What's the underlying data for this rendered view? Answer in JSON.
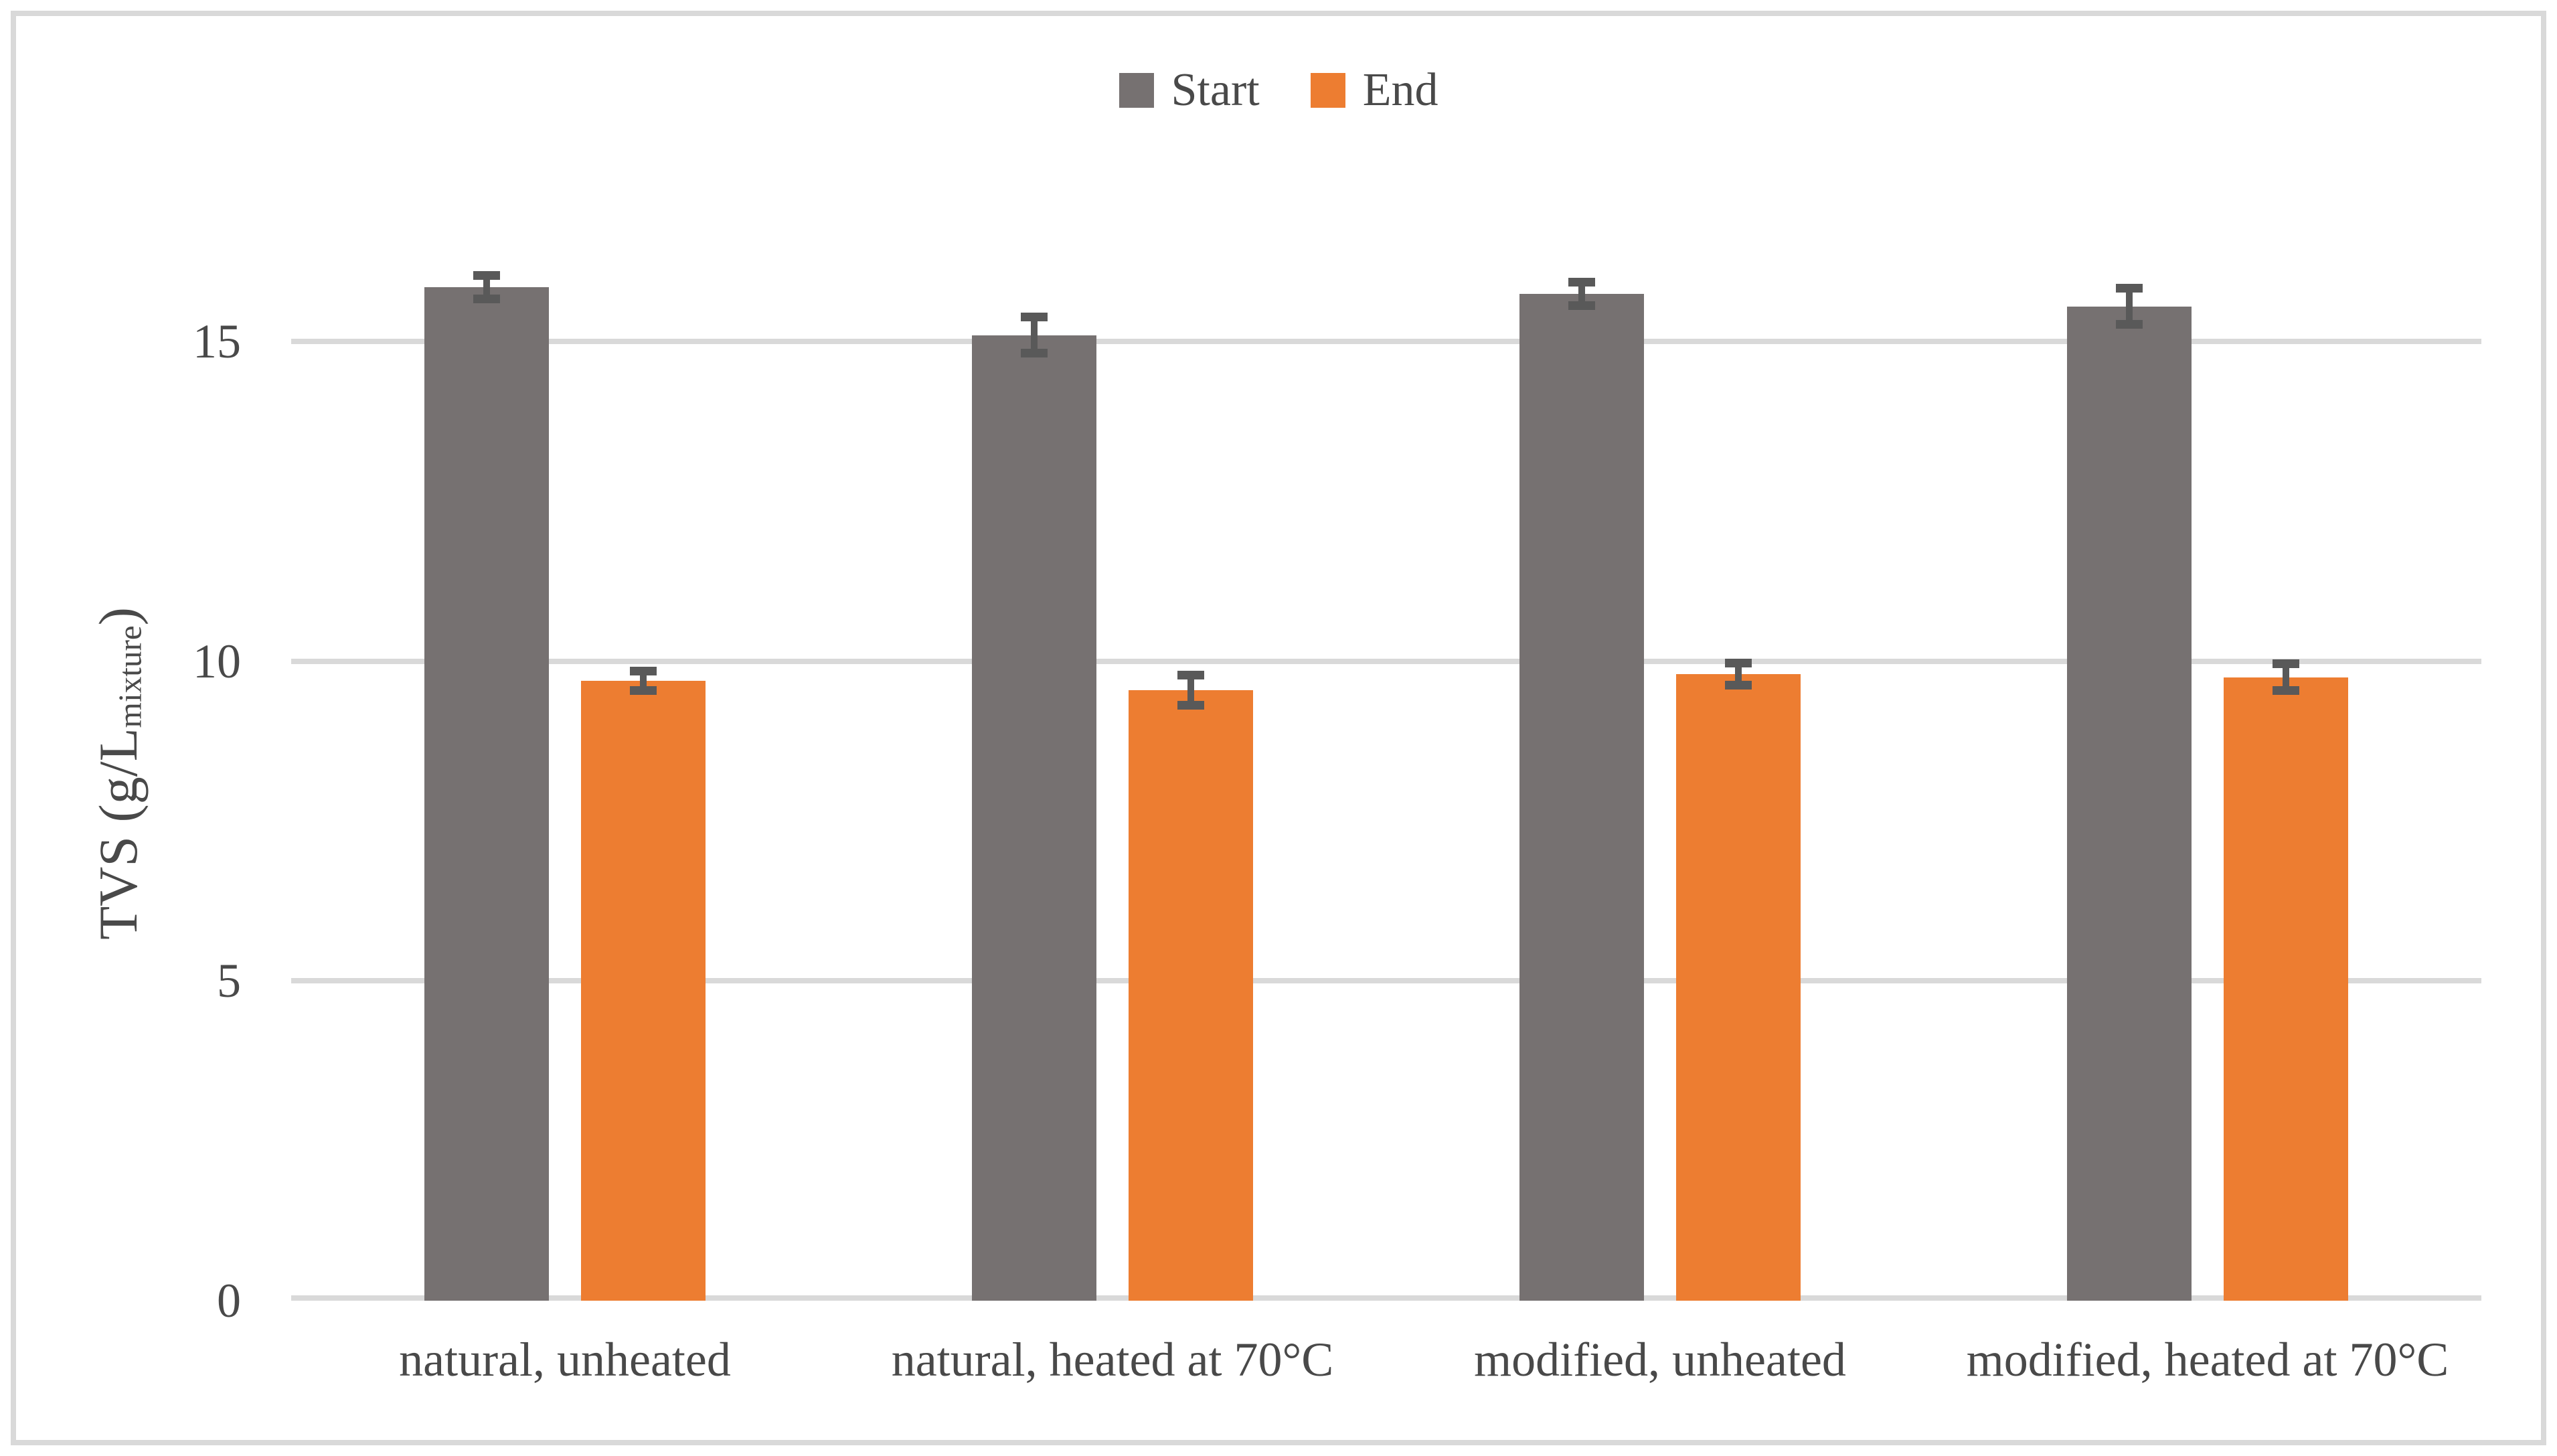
{
  "figure": {
    "background": "#FFFFFF",
    "border_color": "#D9D9D9",
    "text_color": "#494949"
  },
  "legend": {
    "position": "top-center",
    "items": [
      {
        "label": "Start",
        "color": "#767171"
      },
      {
        "label": "End",
        "color": "#ED7D31"
      }
    ]
  },
  "y_axis": {
    "title_main": "TVS (g/L",
    "title_sub": "mixture",
    "title_close": ")",
    "ticks": [
      {
        "value": 0,
        "label": "0"
      },
      {
        "value": 5,
        "label": "5"
      },
      {
        "value": 10,
        "label": "10"
      },
      {
        "value": 15,
        "label": "15"
      }
    ]
  },
  "chart_data": {
    "type": "bar",
    "title": "",
    "xlabel": "",
    "ylabel": "TVS (g/L_mixture)",
    "ylim": [
      0,
      16.5
    ],
    "grid": "horizontal",
    "gridline_values": [
      5,
      10,
      15
    ],
    "gridline_color": "#D9D9D9",
    "error_bar_color": "#595959",
    "legend_position": "top",
    "categories": [
      "natural, unheated",
      "natural, heated at 70°C",
      "modified, unheated",
      "modified, heated at 70°C"
    ],
    "series": [
      {
        "name": "Start",
        "color": "#767171",
        "values": [
          15.85,
          15.1,
          15.75,
          15.55
        ],
        "errors": [
          0.25,
          0.35,
          0.25,
          0.35
        ]
      },
      {
        "name": "End",
        "color": "#ED7D31",
        "values": [
          9.7,
          9.55,
          9.8,
          9.75
        ],
        "errors": [
          0.22,
          0.3,
          0.24,
          0.28
        ]
      }
    ]
  }
}
